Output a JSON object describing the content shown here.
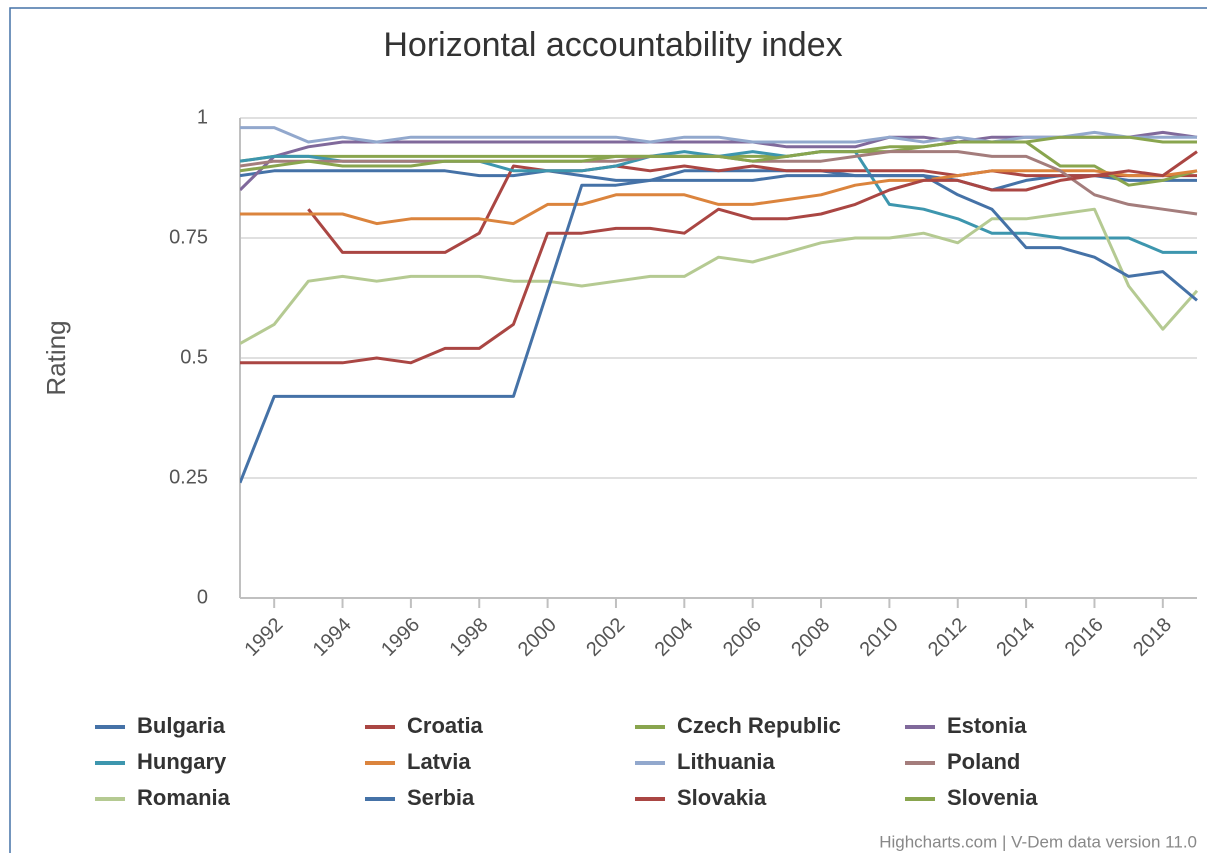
{
  "chart_data": {
    "type": "line",
    "title": "Horizontal accountability index",
    "y_label": "Rating",
    "credits": "Highcharts.com | V-Dem data version 11.0",
    "x": [
      1991,
      1992,
      1993,
      1994,
      1995,
      1996,
      1997,
      1998,
      1999,
      2000,
      2001,
      2002,
      2003,
      2004,
      2005,
      2006,
      2007,
      2008,
      2009,
      2010,
      2011,
      2012,
      2013,
      2014,
      2015,
      2016,
      2017,
      2018,
      2019
    ],
    "xlim": [
      1991,
      2019
    ],
    "xticks": [
      1992,
      1994,
      1996,
      1998,
      2000,
      2002,
      2004,
      2006,
      2008,
      2010,
      2012,
      2014,
      2016,
      2018
    ],
    "ylim": [
      0,
      1
    ],
    "yticks": [
      0,
      0.25,
      0.5,
      0.75,
      1
    ],
    "grid": true,
    "series": [
      {
        "name": "Bulgaria",
        "color": "#4572A7",
        "values": [
          0.88,
          0.89,
          0.89,
          0.89,
          0.89,
          0.89,
          0.89,
          0.88,
          0.88,
          0.89,
          0.88,
          0.87,
          0.87,
          0.89,
          0.89,
          0.89,
          0.89,
          0.89,
          0.88,
          0.88,
          0.88,
          0.87,
          0.85,
          0.87,
          0.88,
          0.88,
          0.87,
          0.87,
          0.87
        ]
      },
      {
        "name": "Croatia",
        "color": "#AA4643",
        "values": [
          null,
          null,
          0.81,
          0.72,
          0.72,
          0.72,
          0.72,
          0.76,
          0.9,
          0.89,
          0.89,
          0.9,
          0.89,
          0.9,
          0.89,
          0.9,
          0.89,
          0.89,
          0.89,
          0.89,
          0.89,
          0.88,
          0.89,
          0.88,
          0.88,
          0.88,
          0.88,
          0.88,
          0.88
        ]
      },
      {
        "name": "Czech Republic",
        "color": "#89A54E",
        "values": [
          0.91,
          0.92,
          0.92,
          0.92,
          0.92,
          0.92,
          0.92,
          0.92,
          0.92,
          0.92,
          0.92,
          0.92,
          0.92,
          0.92,
          0.92,
          0.92,
          0.92,
          0.93,
          0.93,
          0.93,
          0.94,
          0.95,
          0.95,
          0.95,
          0.9,
          0.9,
          0.86,
          0.87,
          0.89
        ]
      },
      {
        "name": "Estonia",
        "color": "#80699B",
        "values": [
          0.85,
          0.92,
          0.94,
          0.95,
          0.95,
          0.95,
          0.95,
          0.95,
          0.95,
          0.95,
          0.95,
          0.95,
          0.95,
          0.95,
          0.95,
          0.95,
          0.94,
          0.94,
          0.94,
          0.96,
          0.96,
          0.95,
          0.96,
          0.96,
          0.96,
          0.96,
          0.96,
          0.97,
          0.96
        ]
      },
      {
        "name": "Hungary",
        "color": "#3D96AE",
        "values": [
          0.91,
          0.92,
          0.92,
          0.91,
          0.91,
          0.91,
          0.91,
          0.91,
          0.89,
          0.89,
          0.89,
          0.9,
          0.92,
          0.93,
          0.92,
          0.93,
          0.92,
          0.93,
          0.93,
          0.82,
          0.81,
          0.79,
          0.76,
          0.76,
          0.75,
          0.75,
          0.75,
          0.72,
          0.72
        ]
      },
      {
        "name": "Latvia",
        "color": "#DB843D",
        "values": [
          0.8,
          0.8,
          0.8,
          0.8,
          0.78,
          0.79,
          0.79,
          0.79,
          0.78,
          0.82,
          0.82,
          0.84,
          0.84,
          0.84,
          0.82,
          0.82,
          0.83,
          0.84,
          0.86,
          0.87,
          0.87,
          0.88,
          0.89,
          0.89,
          0.89,
          0.89,
          0.88,
          0.88,
          0.89
        ]
      },
      {
        "name": "Lithuania",
        "color": "#92A8CD",
        "values": [
          0.98,
          0.98,
          0.95,
          0.96,
          0.95,
          0.96,
          0.96,
          0.96,
          0.96,
          0.96,
          0.96,
          0.96,
          0.95,
          0.96,
          0.96,
          0.95,
          0.95,
          0.95,
          0.95,
          0.96,
          0.95,
          0.96,
          0.95,
          0.96,
          0.96,
          0.97,
          0.96,
          0.96,
          0.96
        ]
      },
      {
        "name": "Poland",
        "color": "#A47D7C",
        "values": [
          0.9,
          0.91,
          0.91,
          0.91,
          0.91,
          0.91,
          0.91,
          0.91,
          0.91,
          0.91,
          0.91,
          0.91,
          0.92,
          0.92,
          0.92,
          0.91,
          0.91,
          0.91,
          0.92,
          0.93,
          0.93,
          0.93,
          0.92,
          0.92,
          0.89,
          0.84,
          0.82,
          0.81,
          0.8
        ]
      },
      {
        "name": "Romania",
        "color": "#B5CA92",
        "values": [
          0.53,
          0.57,
          0.66,
          0.67,
          0.66,
          0.67,
          0.67,
          0.67,
          0.66,
          0.66,
          0.65,
          0.66,
          0.67,
          0.67,
          0.71,
          0.7,
          0.72,
          0.74,
          0.75,
          0.75,
          0.76,
          0.74,
          0.79,
          0.79,
          0.8,
          0.81,
          0.65,
          0.56,
          0.64
        ]
      },
      {
        "name": "Serbia",
        "color": "#4572A7",
        "values": [
          0.24,
          0.42,
          0.42,
          0.42,
          0.42,
          0.42,
          0.42,
          0.42,
          0.42,
          0.64,
          0.86,
          0.86,
          0.87,
          0.87,
          0.87,
          0.87,
          0.88,
          0.88,
          0.88,
          0.88,
          0.88,
          0.84,
          0.81,
          0.73,
          0.73,
          0.71,
          0.67,
          0.68,
          0.62
        ]
      },
      {
        "name": "Slovakia",
        "color": "#AA4643",
        "values": [
          0.49,
          0.49,
          0.49,
          0.49,
          0.5,
          0.49,
          0.52,
          0.52,
          0.57,
          0.76,
          0.76,
          0.77,
          0.77,
          0.76,
          0.81,
          0.79,
          0.79,
          0.8,
          0.82,
          0.85,
          0.87,
          0.87,
          0.85,
          0.85,
          0.87,
          0.88,
          0.89,
          0.88,
          0.93
        ]
      },
      {
        "name": "Slovenia",
        "color": "#89A54E",
        "values": [
          0.89,
          0.9,
          0.91,
          0.9,
          0.9,
          0.9,
          0.91,
          0.91,
          0.91,
          0.91,
          0.91,
          0.92,
          0.92,
          0.92,
          0.92,
          0.91,
          0.92,
          0.93,
          0.93,
          0.94,
          0.94,
          0.95,
          0.95,
          0.95,
          0.96,
          0.96,
          0.96,
          0.95,
          0.95
        ]
      }
    ]
  }
}
